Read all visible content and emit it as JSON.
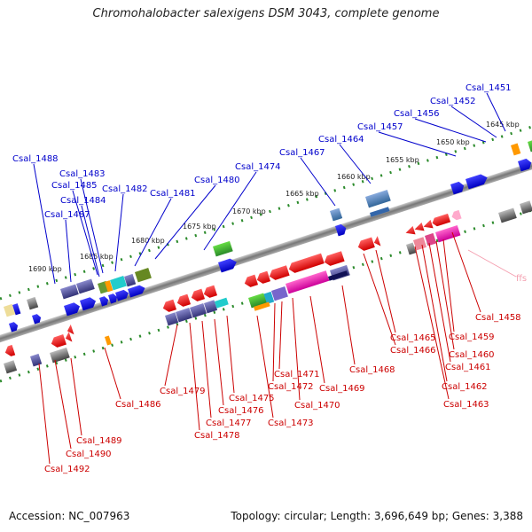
{
  "title": "Chromohalobacter salexigens DSM 3043, complete genome",
  "footer": {
    "accession": "Accession: NC_007963",
    "summary": "Topology: circular; Length: 3,696,649 bp; Genes: 3,388"
  },
  "colors": {
    "backbone": "#8a8a8a",
    "forward_label": "#0000cc",
    "reverse_label": "#cc0000",
    "rna_label": "#f4a0b0",
    "tick": "#2a8a2a"
  },
  "kbp_ticks": [
    "1645 kbp",
    "1650 kbp",
    "1655 kbp",
    "1660 kbp",
    "1665 kbp",
    "1670 kbp",
    "1675 kbp",
    "1680 kbp",
    "1685 kbp",
    "1690 kbp"
  ],
  "forward_labels": [
    "Csal_1451",
    "Csal_1452",
    "Csal_1456",
    "Csal_1457",
    "Csal_1464",
    "Csal_1467",
    "Csal_1474",
    "Csal_1480",
    "Csal_1481",
    "Csal_1482",
    "Csal_1483",
    "Csal_1485",
    "Csal_1484",
    "Csal_1487",
    "Csal_1488"
  ],
  "reverse_labels": [
    "Csal_1458",
    "Csal_1459",
    "Csal_1460",
    "Csal_1461",
    "Csal_1462",
    "Csal_1463",
    "Csal_1465",
    "Csal_1466",
    "Csal_1468",
    "Csal_1469",
    "Csal_1470",
    "Csal_1471",
    "Csal_1472",
    "Csal_1473",
    "Csal_1475",
    "Csal_1476",
    "Csal_1477",
    "Csal_1478",
    "Csal_1479",
    "Csal_1486",
    "Csal_1489",
    "Csal_1490",
    "Csal_1492"
  ],
  "rna_labels": [
    "ffs"
  ]
}
